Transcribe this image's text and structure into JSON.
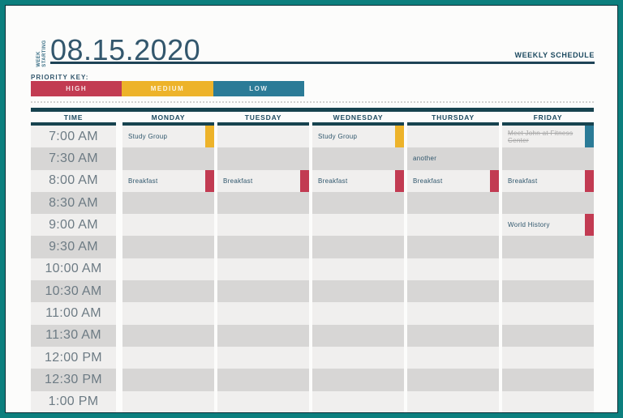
{
  "page": {
    "title": "WEEKLY SCHEDULE",
    "week_starting": {
      "line1": "WEEK",
      "line2": "STARTING"
    },
    "date": "08.15.2020"
  },
  "priority_key": {
    "label": "PRIORITY KEY:",
    "levels": [
      {
        "name": "HIGH",
        "color": "#c23b52"
      },
      {
        "name": "MEDIUM",
        "color": "#edb32a"
      },
      {
        "name": "LOW",
        "color": "#2b7b97"
      }
    ]
  },
  "schedule": {
    "time_header": "TIME",
    "days": [
      "MONDAY",
      "TUESDAY",
      "WEDNESDAY",
      "THURSDAY",
      "FRIDAY"
    ],
    "times": [
      "7:00 AM",
      "7:30 AM",
      "8:00 AM",
      "8:30 AM",
      "9:00 AM",
      "9:30 AM",
      "10:00 AM",
      "10:30 AM",
      "11:00 AM",
      "11:30 AM",
      "12:00 PM",
      "12:30 PM",
      "1:00 PM"
    ],
    "events": [
      {
        "day": "MONDAY",
        "time": "7:00 AM",
        "title": "Study Group",
        "priority": "MEDIUM",
        "completed": false
      },
      {
        "day": "MONDAY",
        "time": "8:00 AM",
        "title": "Breakfast",
        "priority": "HIGH",
        "completed": false
      },
      {
        "day": "TUESDAY",
        "time": "8:00 AM",
        "title": "Breakfast",
        "priority": "HIGH",
        "completed": false
      },
      {
        "day": "WEDNESDAY",
        "time": "7:00 AM",
        "title": "Study Group",
        "priority": "MEDIUM",
        "completed": false
      },
      {
        "day": "WEDNESDAY",
        "time": "8:00 AM",
        "title": "Breakfast",
        "priority": "HIGH",
        "completed": false
      },
      {
        "day": "THURSDAY",
        "time": "7:30 AM",
        "title": "another",
        "priority": null,
        "completed": false
      },
      {
        "day": "THURSDAY",
        "time": "8:00 AM",
        "title": "Breakfast",
        "priority": "HIGH",
        "completed": false
      },
      {
        "day": "FRIDAY",
        "time": "7:00 AM",
        "title": "Meet John at Fitness Center",
        "priority": "LOW",
        "completed": true
      },
      {
        "day": "FRIDAY",
        "time": "8:00 AM",
        "title": "Breakfast",
        "priority": "HIGH",
        "completed": false
      },
      {
        "day": "FRIDAY",
        "time": "9:00 AM",
        "title": "World History",
        "priority": "HIGH",
        "completed": false
      }
    ]
  },
  "colors": {
    "page_border": "#0c7f7e",
    "accent_dark": "#17434f",
    "row_light": "#f0efee",
    "row_dark": "#d7d6d5"
  }
}
